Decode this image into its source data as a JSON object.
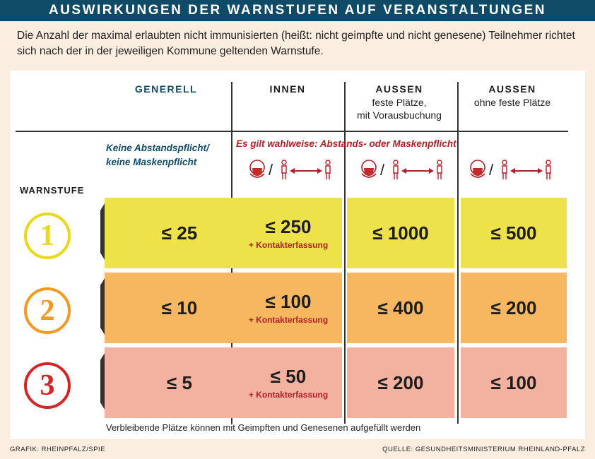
{
  "title": "AUSWIRKUNGEN DER WARNSTUFEN AUF VERANSTALTUNGEN",
  "intro": "Die Anzahl der maximal erlaubten nicht immunisierten (heißt: nicht geimpfte und nicht genesene) Teilnehmer richtet sich nach der in der jeweiligen Kommune geltenden Warnstufe.",
  "columns": {
    "generell": "GENERELL",
    "innen": "INNEN",
    "aussen1": {
      "title": "AUSSEN",
      "sub1": "feste Plätze,",
      "sub2": "mit Vorausbuchung"
    },
    "aussen2": {
      "title": "AUSSEN",
      "sub1": "ohne feste Plätze"
    }
  },
  "notes": {
    "generell_line1": "Keine Abstandspflicht/",
    "generell_line2": "keine Maskenpflicht",
    "masks": "Es gilt wahlweise: Abstands- oder Maskenpflicht"
  },
  "warnstufe_label": "WARNSTUFE",
  "levels": [
    {
      "number": "1",
      "color": "#ede24a",
      "circle": "#e9d81e",
      "tab": "#f2e62a",
      "generell": "≤ 25",
      "innen": "≤ 250",
      "innen_note": "+ Kontakterfassung",
      "aussen1": "≤ 1000",
      "aussen2": "≤ 500"
    },
    {
      "number": "2",
      "color": "#f6b760",
      "circle": "#f39a22",
      "tab": "#f59a1e",
      "generell": "≤ 10",
      "innen": "≤ 100",
      "innen_note": "+ Kontakterfassung",
      "aussen1": "≤ 400",
      "aussen2": "≤ 200"
    },
    {
      "number": "3",
      "color": "#f3b1a0",
      "circle": "#d42626",
      "tab": "#d92020",
      "generell": "≤ 5",
      "innen": "≤ 50",
      "innen_note": "+ Kontakterfassung",
      "aussen1": "≤ 200",
      "aussen2": "≤ 100"
    }
  ],
  "footnote": "Verbleibende Plätze können mit Geimpften und Genesenen aufgefüllt werden",
  "credit_left": "GRAFIK: RHEINPFALZ/SPIE",
  "credit_right": "QUELLE: GESUNDHEITSMINISTERIUM RHEINLAND-PFALZ"
}
